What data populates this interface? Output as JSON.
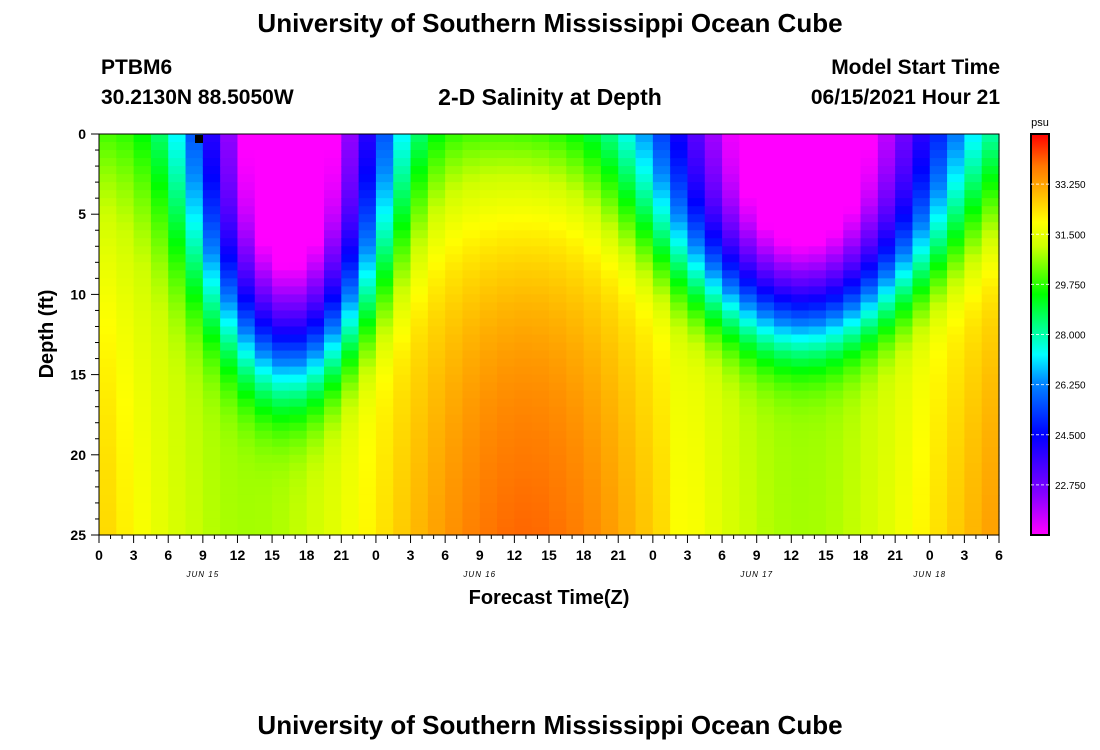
{
  "header": {
    "title_top": "University of Southern Mississippi Ocean Cube",
    "station": "PTBM6",
    "coords": "30.2130N  88.5050W",
    "plot_title": "2-D Salinity at Depth",
    "model_label": "Model Start Time",
    "model_time": "06/15/2021 Hour 21",
    "title_bottom": "University of Southern Mississippi Ocean Cube"
  },
  "chart_data": {
    "type": "heatmap",
    "title": "2-D Salinity at Depth",
    "xlabel": "Forecast Time(Z)",
    "ylabel": "Depth (ft)",
    "x_tick_labels": [
      "0",
      "3",
      "6",
      "9",
      "12",
      "15",
      "18",
      "21",
      "0",
      "3",
      "6",
      "9",
      "12",
      "15",
      "18",
      "21",
      "0",
      "3",
      "6",
      "9",
      "12",
      "15",
      "18",
      "21",
      "0",
      "3",
      "6"
    ],
    "date_labels": [
      {
        "label": "JUN 15",
        "hour": 9
      },
      {
        "label": "JUN 16",
        "hour": 33
      },
      {
        "label": "JUN 17",
        "hour": 57
      },
      {
        "label": "JUN 18",
        "hour": 72
      }
    ],
    "x_range_hours": [
      0,
      78
    ],
    "y_ticks": [
      0,
      5,
      10,
      15,
      20,
      25
    ],
    "y_tick_labels": [
      "0",
      "5",
      "10",
      "15",
      "20",
      "25"
    ],
    "ylim": [
      0,
      25
    ],
    "y_inverted": true,
    "colorbar": {
      "unit": "psu",
      "range": [
        21.0,
        35.0
      ],
      "ticks": [
        22.75,
        24.5,
        26.25,
        28.0,
        29.75,
        31.5,
        33.25
      ],
      "tick_labels": [
        "22.750",
        "24.500",
        "26.250",
        "28.000",
        "29.750",
        "31.500",
        "33.250"
      ]
    },
    "field_description": "Salinity (psu) vs forecast hour and depth; fresh low-salinity layer near surface during hours 6-27 and 46-75, high salinity (~34 psu) at depth near hours 30-45",
    "field_model": {
      "events": [
        {
          "center_hour": 16.5,
          "bottom_depth_ft": 17.5,
          "width_hours": 7.0,
          "tilt": 0.55
        },
        {
          "center_hour": 61.0,
          "bottom_depth_ft": 14.5,
          "width_hours": 10.0,
          "tilt": 0.65
        }
      ],
      "deep_min_salinity": 30.8,
      "deep_max_salinity": 34.3,
      "surface_ambient_salinity": 30.5
    }
  }
}
